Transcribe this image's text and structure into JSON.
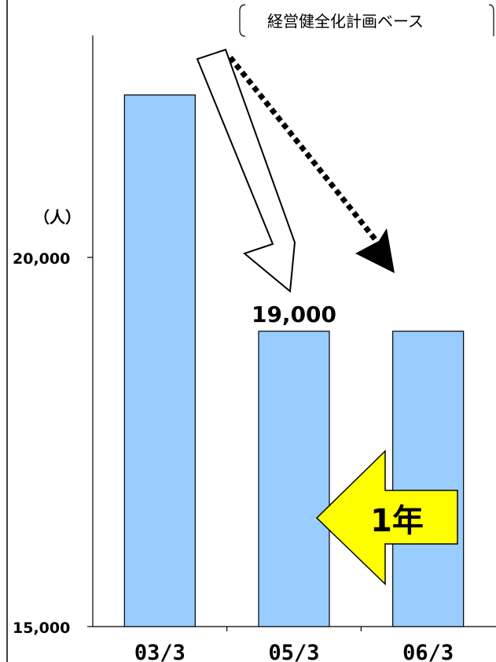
{
  "chart_data": {
    "type": "bar",
    "title": "",
    "xlabel": "",
    "ylabel": "（人）",
    "categories": [
      "03/3",
      "05/3",
      "06/3"
    ],
    "values": [
      22200,
      19000,
      19000
    ],
    "ylim": [
      15000,
      22800
    ],
    "y_ticks": [
      15000,
      20000
    ],
    "y_tick_labels": [
      "15,000",
      "20,000"
    ],
    "data_labels": [
      null,
      "19,000",
      null
    ],
    "bar_color": "#99ccff",
    "grid": false,
    "legend": "none",
    "annotations": {
      "plan_note": "経営健全化計画ベース",
      "arrow_badge": "1年",
      "arrow_badge_color": "#ffff00"
    }
  }
}
